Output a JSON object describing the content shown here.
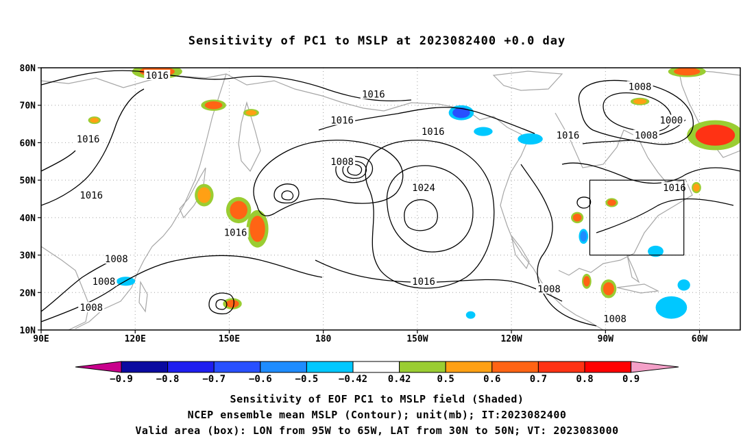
{
  "title": "Sensitivity of PC1 to MSLP at 2023082400 +0.0 day",
  "axes": {
    "lon_labels": [
      "90E",
      "120E",
      "150E",
      "180",
      "150W",
      "120W",
      "90W",
      "60W"
    ],
    "lon_values": [
      90,
      120,
      150,
      180,
      210,
      240,
      270,
      300
    ],
    "lat_labels": [
      "10N",
      "20N",
      "30N",
      "40N",
      "50N",
      "60N",
      "70N",
      "80N"
    ],
    "lat_values": [
      10,
      20,
      30,
      40,
      50,
      60,
      70,
      80
    ],
    "lon_range": [
      90,
      313
    ],
    "lat_range": [
      10,
      80
    ]
  },
  "valid_box": {
    "lon_min": 265,
    "lon_max": 295,
    "lat_min": 30,
    "lat_max": 50
  },
  "contour_labels": [
    {
      "text": "1016",
      "lon": 127,
      "lat": 78
    },
    {
      "text": "1016",
      "lon": 105,
      "lat": 61
    },
    {
      "text": "1016",
      "lon": 106,
      "lat": 46
    },
    {
      "text": "1016",
      "lon": 152,
      "lat": 36
    },
    {
      "text": "1008",
      "lon": 114,
      "lat": 29
    },
    {
      "text": "1008",
      "lon": 110,
      "lat": 23
    },
    {
      "text": "1008",
      "lon": 106,
      "lat": 16
    },
    {
      "text": "1016",
      "lon": 196,
      "lat": 73
    },
    {
      "text": "1016",
      "lon": 186,
      "lat": 66
    },
    {
      "text": "1008",
      "lon": 186,
      "lat": 55
    },
    {
      "text": "1016",
      "lon": 215,
      "lat": 63
    },
    {
      "text": "1024",
      "lon": 212,
      "lat": 48
    },
    {
      "text": "1016",
      "lon": 212,
      "lat": 23
    },
    {
      "text": "1016",
      "lon": 258,
      "lat": 62
    },
    {
      "text": "1008",
      "lon": 281,
      "lat": 75
    },
    {
      "text": "1000",
      "lon": 291,
      "lat": 66
    },
    {
      "text": "1008",
      "lon": 283,
      "lat": 62
    },
    {
      "text": "1016",
      "lon": 292,
      "lat": 48
    },
    {
      "text": "1008",
      "lon": 252,
      "lat": 21
    },
    {
      "text": "1008",
      "lon": 273,
      "lat": 13
    }
  ],
  "shading": [
    {
      "lon": 127,
      "lat": 79,
      "rx": 8,
      "ry": 2,
      "value": 0.6
    },
    {
      "lon": 145,
      "lat": 70,
      "rx": 4,
      "ry": 1.5,
      "value": 0.6
    },
    {
      "lon": 157,
      "lat": 68,
      "rx": 2.5,
      "ry": 1,
      "value": 0.5
    },
    {
      "lon": 107,
      "lat": 66,
      "rx": 2,
      "ry": 1,
      "value": 0.5
    },
    {
      "lon": 153,
      "lat": 42,
      "rx": 4,
      "ry": 3.5,
      "value": 0.6
    },
    {
      "lon": 159,
      "lat": 37,
      "rx": 3.5,
      "ry": 5,
      "value": 0.6
    },
    {
      "lon": 142,
      "lat": 46,
      "rx": 3,
      "ry": 3,
      "value": 0.5
    },
    {
      "lon": 151,
      "lat": 17,
      "rx": 3,
      "ry": 1.5,
      "value": 0.6
    },
    {
      "lon": 117,
      "lat": 23,
      "rx": 3,
      "ry": 1.2,
      "value": -0.5
    },
    {
      "lon": 224,
      "lat": 68,
      "rx": 4,
      "ry": 2,
      "value": -0.7
    },
    {
      "lon": 231,
      "lat": 63,
      "rx": 3,
      "ry": 1.2,
      "value": -0.5
    },
    {
      "lon": 246,
      "lat": 61,
      "rx": 4,
      "ry": 1.5,
      "value": -0.5
    },
    {
      "lon": 296,
      "lat": 79,
      "rx": 6,
      "ry": 1.5,
      "value": 0.6
    },
    {
      "lon": 305,
      "lat": 62,
      "rx": 9,
      "ry": 4,
      "value": 0.7
    },
    {
      "lon": 261,
      "lat": 40,
      "rx": 2,
      "ry": 1.5,
      "value": 0.6
    },
    {
      "lon": 263,
      "lat": 35,
      "rx": 1.5,
      "ry": 2,
      "value": -0.6
    },
    {
      "lon": 272,
      "lat": 44,
      "rx": 2,
      "ry": 1.2,
      "value": 0.6
    },
    {
      "lon": 264,
      "lat": 23,
      "rx": 1.5,
      "ry": 2,
      "value": 0.6
    },
    {
      "lon": 271,
      "lat": 21,
      "rx": 2.5,
      "ry": 2.5,
      "value": 0.6
    },
    {
      "lon": 286,
      "lat": 31,
      "rx": 2.5,
      "ry": 1.5,
      "value": -0.5
    },
    {
      "lon": 291,
      "lat": 16,
      "rx": 5,
      "ry": 3,
      "value": -0.5
    },
    {
      "lon": 295,
      "lat": 22,
      "rx": 2,
      "ry": 1.5,
      "value": -0.5
    },
    {
      "lon": 281,
      "lat": 71,
      "rx": 3,
      "ry": 1,
      "value": 0.5
    },
    {
      "lon": 299,
      "lat": 48,
      "rx": 1.5,
      "ry": 1.5,
      "value": 0.5
    },
    {
      "lon": 227,
      "lat": 14,
      "rx": 1.5,
      "ry": 1,
      "value": -0.5
    }
  ],
  "colorbar": {
    "tick_labels": [
      "−0.9",
      "−0.8",
      "−0.7",
      "−0.6",
      "−0.5",
      "−0.42",
      "0.42",
      "0.5",
      "0.6",
      "0.7",
      "0.8",
      "0.9"
    ],
    "below_color": "#c8008c",
    "above_color": "#f4a0c8",
    "boxes": [
      {
        "color": "#0a0aa0"
      },
      {
        "color": "#1e1ef0"
      },
      {
        "color": "#2850ff"
      },
      {
        "color": "#1e8cff"
      },
      {
        "color": "#00c8ff"
      },
      {
        "color": "#ffffff"
      },
      {
        "color": "#9acd32"
      },
      {
        "color": "#ffa014"
      },
      {
        "color": "#ff6414"
      },
      {
        "color": "#ff3214"
      },
      {
        "color": "#ff0000"
      }
    ]
  },
  "footer": {
    "line1": "Sensitivity of EOF PC1 to MSLP field (Shaded)",
    "line2": "NCEP ensemble mean MSLP (Contour); unit(mb); IT:2023082400",
    "line3": "Valid area (box): LON from 95W to 65W, LAT from 30N to 50N; VT: 2023083000"
  }
}
